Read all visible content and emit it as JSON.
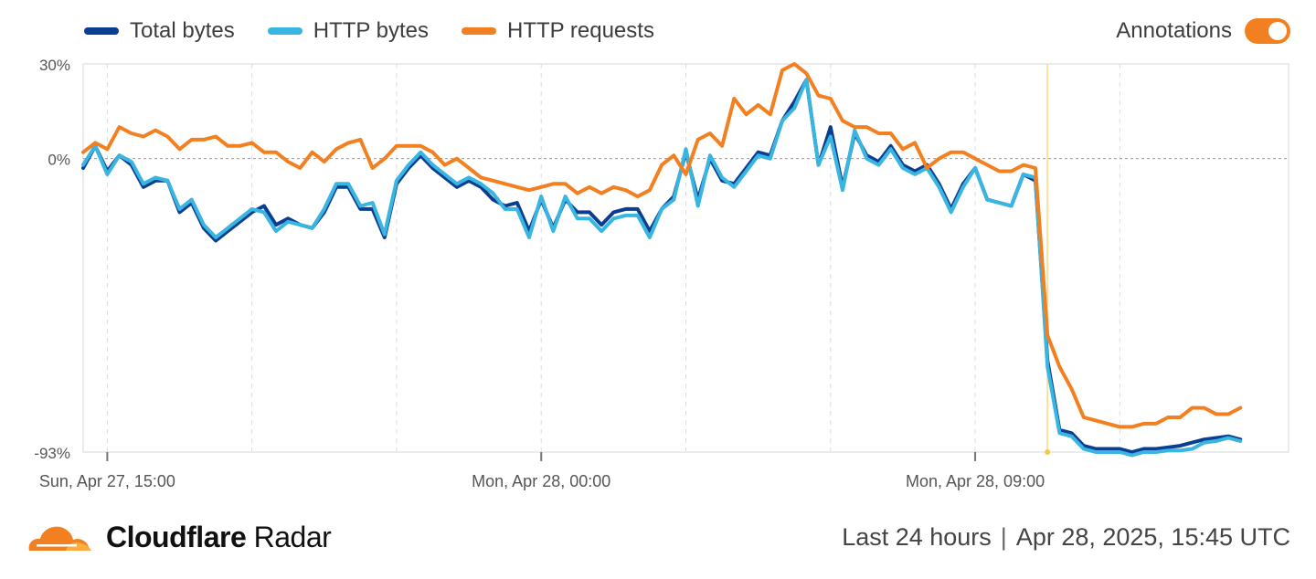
{
  "legend": {
    "items": [
      {
        "label": "Total bytes",
        "color": "#0b3d91"
      },
      {
        "label": "HTTP bytes",
        "color": "#38b5e0"
      },
      {
        "label": "HTTP requests",
        "color": "#f38020"
      }
    ]
  },
  "annotations": {
    "label": "Annotations",
    "enabled": true,
    "color": "#f38020"
  },
  "footer": {
    "brand_bold": "Cloudflare",
    "brand_rest": "Radar",
    "range": "Last 24 hours",
    "separator": "|",
    "timestamp": "Apr 28, 2025, 15:45 UTC"
  },
  "chart_data": {
    "type": "line",
    "ylim": [
      -93,
      30
    ],
    "ytick_labels": [
      {
        "value": 30,
        "label": "30%"
      },
      {
        "value": 0,
        "label": "0%"
      },
      {
        "value": -93,
        "label": "-93%"
      }
    ],
    "xlim": [
      14.5,
      39.5
    ],
    "xtick_labels": [
      {
        "value": 15,
        "label": "Sun, Apr 27, 15:00"
      },
      {
        "value": 24,
        "label": "Mon, Apr 28, 00:00"
      },
      {
        "value": 33,
        "label": "Mon, Apr 28, 09:00"
      }
    ],
    "grid_vertical": [
      15,
      18,
      21,
      24,
      27,
      30,
      33,
      36
    ],
    "annotation_x": 34.5,
    "zero_line": true,
    "series": [
      {
        "name": "Total bytes",
        "color": "#0b3d91",
        "points": [
          [
            14.5,
            -3
          ],
          [
            14.75,
            4
          ],
          [
            15,
            -4
          ],
          [
            15.25,
            1
          ],
          [
            15.5,
            -2
          ],
          [
            15.75,
            -9
          ],
          [
            16,
            -7
          ],
          [
            16.25,
            -7
          ],
          [
            16.5,
            -17
          ],
          [
            16.75,
            -14
          ],
          [
            17,
            -22
          ],
          [
            17.25,
            -26
          ],
          [
            17.5,
            -23
          ],
          [
            17.75,
            -20
          ],
          [
            18,
            -17
          ],
          [
            18.25,
            -15
          ],
          [
            18.5,
            -21
          ],
          [
            18.75,
            -19
          ],
          [
            19,
            -21
          ],
          [
            19.25,
            -22
          ],
          [
            19.5,
            -17
          ],
          [
            19.75,
            -9
          ],
          [
            20,
            -9
          ],
          [
            20.25,
            -16
          ],
          [
            20.5,
            -16
          ],
          [
            20.75,
            -25
          ],
          [
            21,
            -8
          ],
          [
            21.25,
            -3
          ],
          [
            21.5,
            1
          ],
          [
            21.75,
            -3
          ],
          [
            22,
            -6
          ],
          [
            22.25,
            -9
          ],
          [
            22.5,
            -7
          ],
          [
            22.75,
            -9
          ],
          [
            23,
            -13
          ],
          [
            23.25,
            -15
          ],
          [
            23.5,
            -14
          ],
          [
            23.75,
            -23
          ],
          [
            24,
            -13
          ],
          [
            24.25,
            -22
          ],
          [
            24.5,
            -13
          ],
          [
            24.75,
            -17
          ],
          [
            25,
            -17
          ],
          [
            25.25,
            -21
          ],
          [
            25.5,
            -17
          ],
          [
            25.75,
            -16
          ],
          [
            26,
            -16
          ],
          [
            26.25,
            -23
          ],
          [
            26.5,
            -16
          ],
          [
            26.75,
            -12
          ],
          [
            27,
            2
          ],
          [
            27.25,
            -13
          ],
          [
            27.5,
            0
          ],
          [
            27.75,
            -7
          ],
          [
            28,
            -8
          ],
          [
            28.25,
            -3
          ],
          [
            28.5,
            2
          ],
          [
            28.75,
            1
          ],
          [
            29,
            12
          ],
          [
            29.25,
            18
          ],
          [
            29.5,
            25
          ],
          [
            29.75,
            -2
          ],
          [
            30,
            10
          ],
          [
            30.25,
            -9
          ],
          [
            30.5,
            8
          ],
          [
            30.75,
            1
          ],
          [
            31,
            -1
          ],
          [
            31.25,
            4
          ],
          [
            31.5,
            -2
          ],
          [
            31.75,
            -4
          ],
          [
            32,
            -2
          ],
          [
            32.25,
            -8
          ],
          [
            32.5,
            -16
          ],
          [
            32.75,
            -8
          ],
          [
            33,
            -3
          ],
          [
            33.25,
            -13
          ],
          [
            33.5,
            -14
          ],
          [
            33.75,
            -15
          ],
          [
            34,
            -5
          ],
          [
            34.25,
            -7
          ],
          [
            34.5,
            -64
          ],
          [
            34.75,
            -86
          ],
          [
            35,
            -87
          ],
          [
            35.25,
            -91
          ],
          [
            35.5,
            -92
          ],
          [
            35.75,
            -92
          ],
          [
            36,
            -92
          ],
          [
            36.25,
            -93
          ],
          [
            36.5,
            -92
          ],
          [
            36.75,
            -92
          ],
          [
            37,
            -91.5
          ],
          [
            37.25,
            -91
          ],
          [
            37.5,
            -90
          ],
          [
            37.75,
            -89
          ],
          [
            38,
            -88.5
          ],
          [
            38.25,
            -88
          ],
          [
            38.5,
            -89
          ]
        ]
      },
      {
        "name": "HTTP bytes",
        "color": "#38b5e0",
        "points": [
          [
            14.5,
            -2
          ],
          [
            14.75,
            4
          ],
          [
            15,
            -5
          ],
          [
            15.25,
            1
          ],
          [
            15.5,
            -1
          ],
          [
            15.75,
            -8
          ],
          [
            16,
            -6
          ],
          [
            16.25,
            -7
          ],
          [
            16.5,
            -16
          ],
          [
            16.75,
            -13
          ],
          [
            17,
            -21
          ],
          [
            17.25,
            -25
          ],
          [
            17.5,
            -22
          ],
          [
            17.75,
            -19
          ],
          [
            18,
            -16
          ],
          [
            18.25,
            -17
          ],
          [
            18.5,
            -23
          ],
          [
            18.75,
            -20
          ],
          [
            19,
            -21
          ],
          [
            19.25,
            -22
          ],
          [
            19.5,
            -16
          ],
          [
            19.75,
            -8
          ],
          [
            20,
            -8
          ],
          [
            20.25,
            -15
          ],
          [
            20.5,
            -14
          ],
          [
            20.75,
            -24
          ],
          [
            21,
            -7
          ],
          [
            21.25,
            -2
          ],
          [
            21.5,
            2
          ],
          [
            21.75,
            -2
          ],
          [
            22,
            -5
          ],
          [
            22.25,
            -8
          ],
          [
            22.5,
            -6
          ],
          [
            22.75,
            -8
          ],
          [
            23,
            -11
          ],
          [
            23.25,
            -16
          ],
          [
            23.5,
            -16
          ],
          [
            23.75,
            -25
          ],
          [
            24,
            -12
          ],
          [
            24.25,
            -23
          ],
          [
            24.5,
            -12
          ],
          [
            24.75,
            -19
          ],
          [
            25,
            -19
          ],
          [
            25.25,
            -23
          ],
          [
            25.5,
            -19
          ],
          [
            25.75,
            -18
          ],
          [
            26,
            -18
          ],
          [
            26.25,
            -25
          ],
          [
            26.5,
            -16
          ],
          [
            26.75,
            -13
          ],
          [
            27,
            3
          ],
          [
            27.25,
            -15
          ],
          [
            27.5,
            1
          ],
          [
            27.75,
            -6
          ],
          [
            28,
            -9
          ],
          [
            28.25,
            -4
          ],
          [
            28.5,
            1
          ],
          [
            28.75,
            0
          ],
          [
            29,
            12
          ],
          [
            29.25,
            16
          ],
          [
            29.5,
            25
          ],
          [
            29.75,
            -2
          ],
          [
            30,
            7
          ],
          [
            30.25,
            -10
          ],
          [
            30.5,
            9
          ],
          [
            30.75,
            0
          ],
          [
            31,
            -2
          ],
          [
            31.25,
            3
          ],
          [
            31.5,
            -3
          ],
          [
            31.75,
            -5
          ],
          [
            32,
            -3
          ],
          [
            32.25,
            -9
          ],
          [
            32.5,
            -17
          ],
          [
            32.75,
            -9
          ],
          [
            33,
            -3
          ],
          [
            33.25,
            -13
          ],
          [
            33.5,
            -14
          ],
          [
            33.75,
            -15
          ],
          [
            34,
            -5
          ],
          [
            34.25,
            -6
          ],
          [
            34.5,
            -66
          ],
          [
            34.75,
            -87
          ],
          [
            35,
            -88
          ],
          [
            35.25,
            -92
          ],
          [
            35.5,
            -93
          ],
          [
            35.75,
            -93
          ],
          [
            36,
            -93
          ],
          [
            36.25,
            -94
          ],
          [
            36.5,
            -93
          ],
          [
            36.75,
            -93
          ],
          [
            37,
            -92.5
          ],
          [
            37.25,
            -92.5
          ],
          [
            37.5,
            -92
          ],
          [
            37.75,
            -90
          ],
          [
            38,
            -89.5
          ],
          [
            38.25,
            -88.5
          ],
          [
            38.5,
            -89.5
          ]
        ]
      },
      {
        "name": "HTTP requests",
        "color": "#f38020",
        "points": [
          [
            14.5,
            2
          ],
          [
            14.75,
            5
          ],
          [
            15,
            3
          ],
          [
            15.25,
            10
          ],
          [
            15.5,
            8
          ],
          [
            15.75,
            7
          ],
          [
            16,
            9
          ],
          [
            16.25,
            7
          ],
          [
            16.5,
            3
          ],
          [
            16.75,
            6
          ],
          [
            17,
            6
          ],
          [
            17.25,
            7
          ],
          [
            17.5,
            4
          ],
          [
            17.75,
            4
          ],
          [
            18,
            5
          ],
          [
            18.25,
            2
          ],
          [
            18.5,
            2
          ],
          [
            18.75,
            -1
          ],
          [
            19,
            -3
          ],
          [
            19.25,
            2
          ],
          [
            19.5,
            -1
          ],
          [
            19.75,
            3
          ],
          [
            20,
            5
          ],
          [
            20.25,
            6
          ],
          [
            20.5,
            -3
          ],
          [
            20.75,
            0
          ],
          [
            21,
            4
          ],
          [
            21.25,
            4
          ],
          [
            21.5,
            4
          ],
          [
            21.75,
            2
          ],
          [
            22,
            -2
          ],
          [
            22.25,
            0
          ],
          [
            22.5,
            -3
          ],
          [
            22.75,
            -6
          ],
          [
            23,
            -7
          ],
          [
            23.25,
            -8
          ],
          [
            23.5,
            -9
          ],
          [
            23.75,
            -10
          ],
          [
            24,
            -9
          ],
          [
            24.25,
            -8
          ],
          [
            24.5,
            -8
          ],
          [
            24.75,
            -11
          ],
          [
            25,
            -9
          ],
          [
            25.25,
            -11
          ],
          [
            25.5,
            -9
          ],
          [
            25.75,
            -10
          ],
          [
            26,
            -12
          ],
          [
            26.25,
            -10
          ],
          [
            26.5,
            -2
          ],
          [
            26.75,
            1
          ],
          [
            27,
            -5
          ],
          [
            27.25,
            6
          ],
          [
            27.5,
            8
          ],
          [
            27.75,
            4
          ],
          [
            28,
            19
          ],
          [
            28.25,
            14
          ],
          [
            28.5,
            17
          ],
          [
            28.75,
            14
          ],
          [
            29,
            28
          ],
          [
            29.25,
            30
          ],
          [
            29.5,
            27
          ],
          [
            29.75,
            20
          ],
          [
            30,
            19
          ],
          [
            30.25,
            12
          ],
          [
            30.5,
            10
          ],
          [
            30.75,
            10
          ],
          [
            31,
            8
          ],
          [
            31.25,
            8
          ],
          [
            31.5,
            3
          ],
          [
            31.75,
            5
          ],
          [
            32,
            -3
          ],
          [
            32.25,
            0
          ],
          [
            32.5,
            2
          ],
          [
            32.75,
            2
          ],
          [
            33,
            0
          ],
          [
            33.25,
            -2
          ],
          [
            33.5,
            -4
          ],
          [
            33.75,
            -4
          ],
          [
            34,
            -2
          ],
          [
            34.25,
            -3
          ],
          [
            34.5,
            -56
          ],
          [
            34.75,
            -66
          ],
          [
            35,
            -73
          ],
          [
            35.25,
            -82
          ],
          [
            35.5,
            -83
          ],
          [
            35.75,
            -84
          ],
          [
            36,
            -85
          ],
          [
            36.25,
            -85
          ],
          [
            36.5,
            -84
          ],
          [
            36.75,
            -84
          ],
          [
            37,
            -82
          ],
          [
            37.25,
            -82
          ],
          [
            37.5,
            -79
          ],
          [
            37.75,
            -79
          ],
          [
            38,
            -81
          ],
          [
            38.25,
            -81
          ],
          [
            38.5,
            -79
          ]
        ]
      }
    ]
  }
}
